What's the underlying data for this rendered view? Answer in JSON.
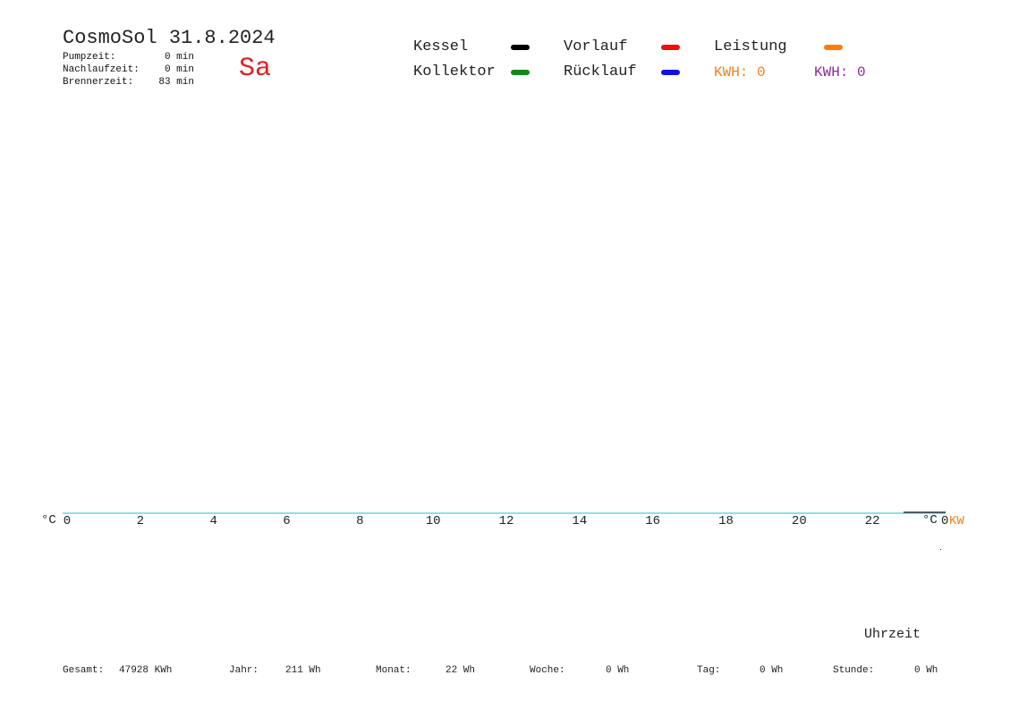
{
  "header": {
    "title": "CosmoSol 31.8.2024",
    "weekday": "Sa",
    "stats": [
      {
        "label": "Pumpzeit:",
        "value": "0 min"
      },
      {
        "label": "Nachlaufzeit:",
        "value": "0 min"
      },
      {
        "label": "Brennerzeit:",
        "value": "83 min"
      }
    ]
  },
  "legend": {
    "items": [
      {
        "label": "Kessel",
        "color": "#000000"
      },
      {
        "label": "Vorlauf",
        "color": "#e81010"
      },
      {
        "label": "Leistung",
        "color": "#f08018"
      },
      {
        "label": "Kollektor",
        "color": "#108a10"
      },
      {
        "label": "Rücklauf",
        "color": "#1010e8"
      }
    ],
    "kwh_orange": "KWH: 0",
    "kwh_purple": "KWH: 0",
    "kwh_orange_color": "#f08018",
    "kwh_purple_color": "#8a2a9a"
  },
  "chart_data": {
    "type": "line",
    "xlabel": "Uhrzeit",
    "y_left_unit": "°C",
    "y_right_unit": "°C",
    "y2_unit": "KW",
    "x_ticks": [
      "0",
      "2",
      "4",
      "6",
      "8",
      "10",
      "12",
      "14",
      "16",
      "18",
      "20",
      "22"
    ],
    "xlim": [
      0,
      24
    ],
    "series": [
      {
        "name": "Kessel",
        "color": "#000000",
        "values": []
      },
      {
        "name": "Vorlauf",
        "color": "#e81010",
        "values": []
      },
      {
        "name": "Leistung",
        "color": "#f08018",
        "values": []
      },
      {
        "name": "Kollektor",
        "color": "#108a10",
        "values": []
      },
      {
        "name": "Rücklauf",
        "color": "#1010e8",
        "values": []
      }
    ],
    "grid": false
  },
  "footer": {
    "items": [
      {
        "label": "Gesamt:",
        "value": "47928 KWh"
      },
      {
        "label": "Jahr:",
        "value": "211 Wh"
      },
      {
        "label": "Monat:",
        "value": "22 Wh"
      },
      {
        "label": "Woche:",
        "value": "0 Wh"
      },
      {
        "label": "Tag:",
        "value": "0 Wh"
      },
      {
        "label": "Stunde:",
        "value": "0 Wh"
      }
    ]
  }
}
